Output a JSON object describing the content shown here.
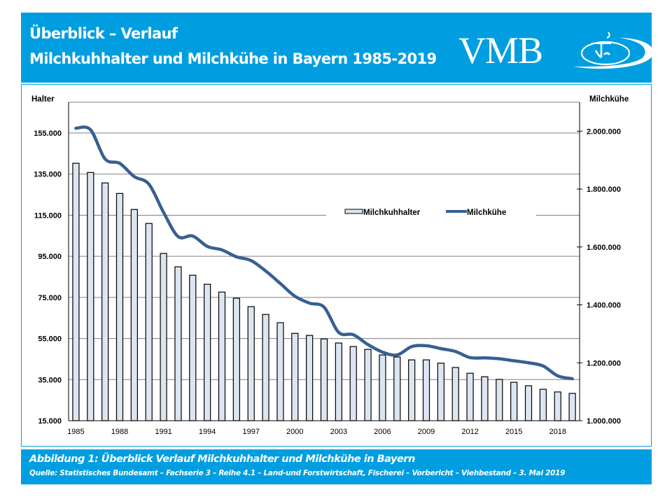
{
  "header": {
    "title_line1": "Überblick – Verlauf",
    "title_line2": "Milchkuhhalter und Milchkühe in Bayern 1985-2019",
    "logo_text": "VMB"
  },
  "footer": {
    "caption": "Abbildung 1: Überblick Verlauf Milchkuhhalter und Milchkühe in Bayern",
    "source": "Quelle: Statistisches Bundesamt – Fachserie 3 – Reihe 4.1 – Land-und Forstwirtschaft, Fischerei – Vorbericht – Viehbestand – 3. Mai 2019"
  },
  "colors": {
    "brand_blue": "#009ee0",
    "bar_fill": "#dce6f2",
    "line": "#376092"
  },
  "chart_data": {
    "type": "bar+line",
    "title": "",
    "x": [
      1985,
      1986,
      1987,
      1988,
      1989,
      1990,
      1991,
      1992,
      1993,
      1994,
      1995,
      1996,
      1997,
      1998,
      1999,
      2000,
      2001,
      2002,
      2003,
      2004,
      2005,
      2006,
      2007,
      2008,
      2009,
      2010,
      2011,
      2012,
      2013,
      2014,
      2015,
      2016,
      2017,
      2018,
      2019
    ],
    "xtick_labels": [
      "1985",
      "1988",
      "1991",
      "1994",
      "1997",
      "2000",
      "2003",
      "2006",
      "2009",
      "2012",
      "2015",
      "2018"
    ],
    "series": [
      {
        "name": "Milchkuhhalter",
        "type": "bar",
        "axis": "left",
        "values": [
          140300,
          135800,
          130700,
          125600,
          117800,
          111000,
          96400,
          89900,
          85800,
          81400,
          77600,
          74600,
          70500,
          66700,
          62700,
          57500,
          56500,
          54800,
          52800,
          51100,
          49700,
          47000,
          46000,
          44600,
          44600,
          43000,
          40900,
          38100,
          36400,
          35100,
          33700,
          32000,
          30300,
          29000,
          28300
        ]
      },
      {
        "name": "Milchkühe",
        "type": "line",
        "axis": "right",
        "values": [
          2010000,
          2005000,
          1904000,
          1889000,
          1843000,
          1817000,
          1720000,
          1636000,
          1638000,
          1602000,
          1590000,
          1566000,
          1553000,
          1517000,
          1474000,
          1430000,
          1406000,
          1392000,
          1305000,
          1297000,
          1263000,
          1237000,
          1227000,
          1256000,
          1259000,
          1249000,
          1239000,
          1218000,
          1217000,
          1214000,
          1207000,
          1200000,
          1189000,
          1155000,
          1145000
        ]
      }
    ],
    "left_axis": {
      "label": "Halter",
      "ylim": [
        15000,
        170000
      ],
      "ticks": [
        15000,
        35000,
        55000,
        75000,
        95000,
        115000,
        135000,
        155000
      ],
      "tick_labels": [
        "15.000",
        "35.000",
        "55.000",
        "75.000",
        "95.000",
        "115.000",
        "135.000",
        "155.000"
      ]
    },
    "right_axis": {
      "label": "Milchkühe",
      "ylim": [
        1000000,
        2100000
      ],
      "ticks": [
        1000000,
        1200000,
        1400000,
        1600000,
        1800000,
        2000000
      ],
      "tick_labels": [
        "1.000.000",
        "1.200.000",
        "1.400.000",
        "1.600.000",
        "1.800.000",
        "2.000.000"
      ]
    },
    "grid": true,
    "legend": {
      "position": "center-right",
      "entries": [
        "Milchkuhhalter",
        "Milchkühe"
      ]
    }
  }
}
